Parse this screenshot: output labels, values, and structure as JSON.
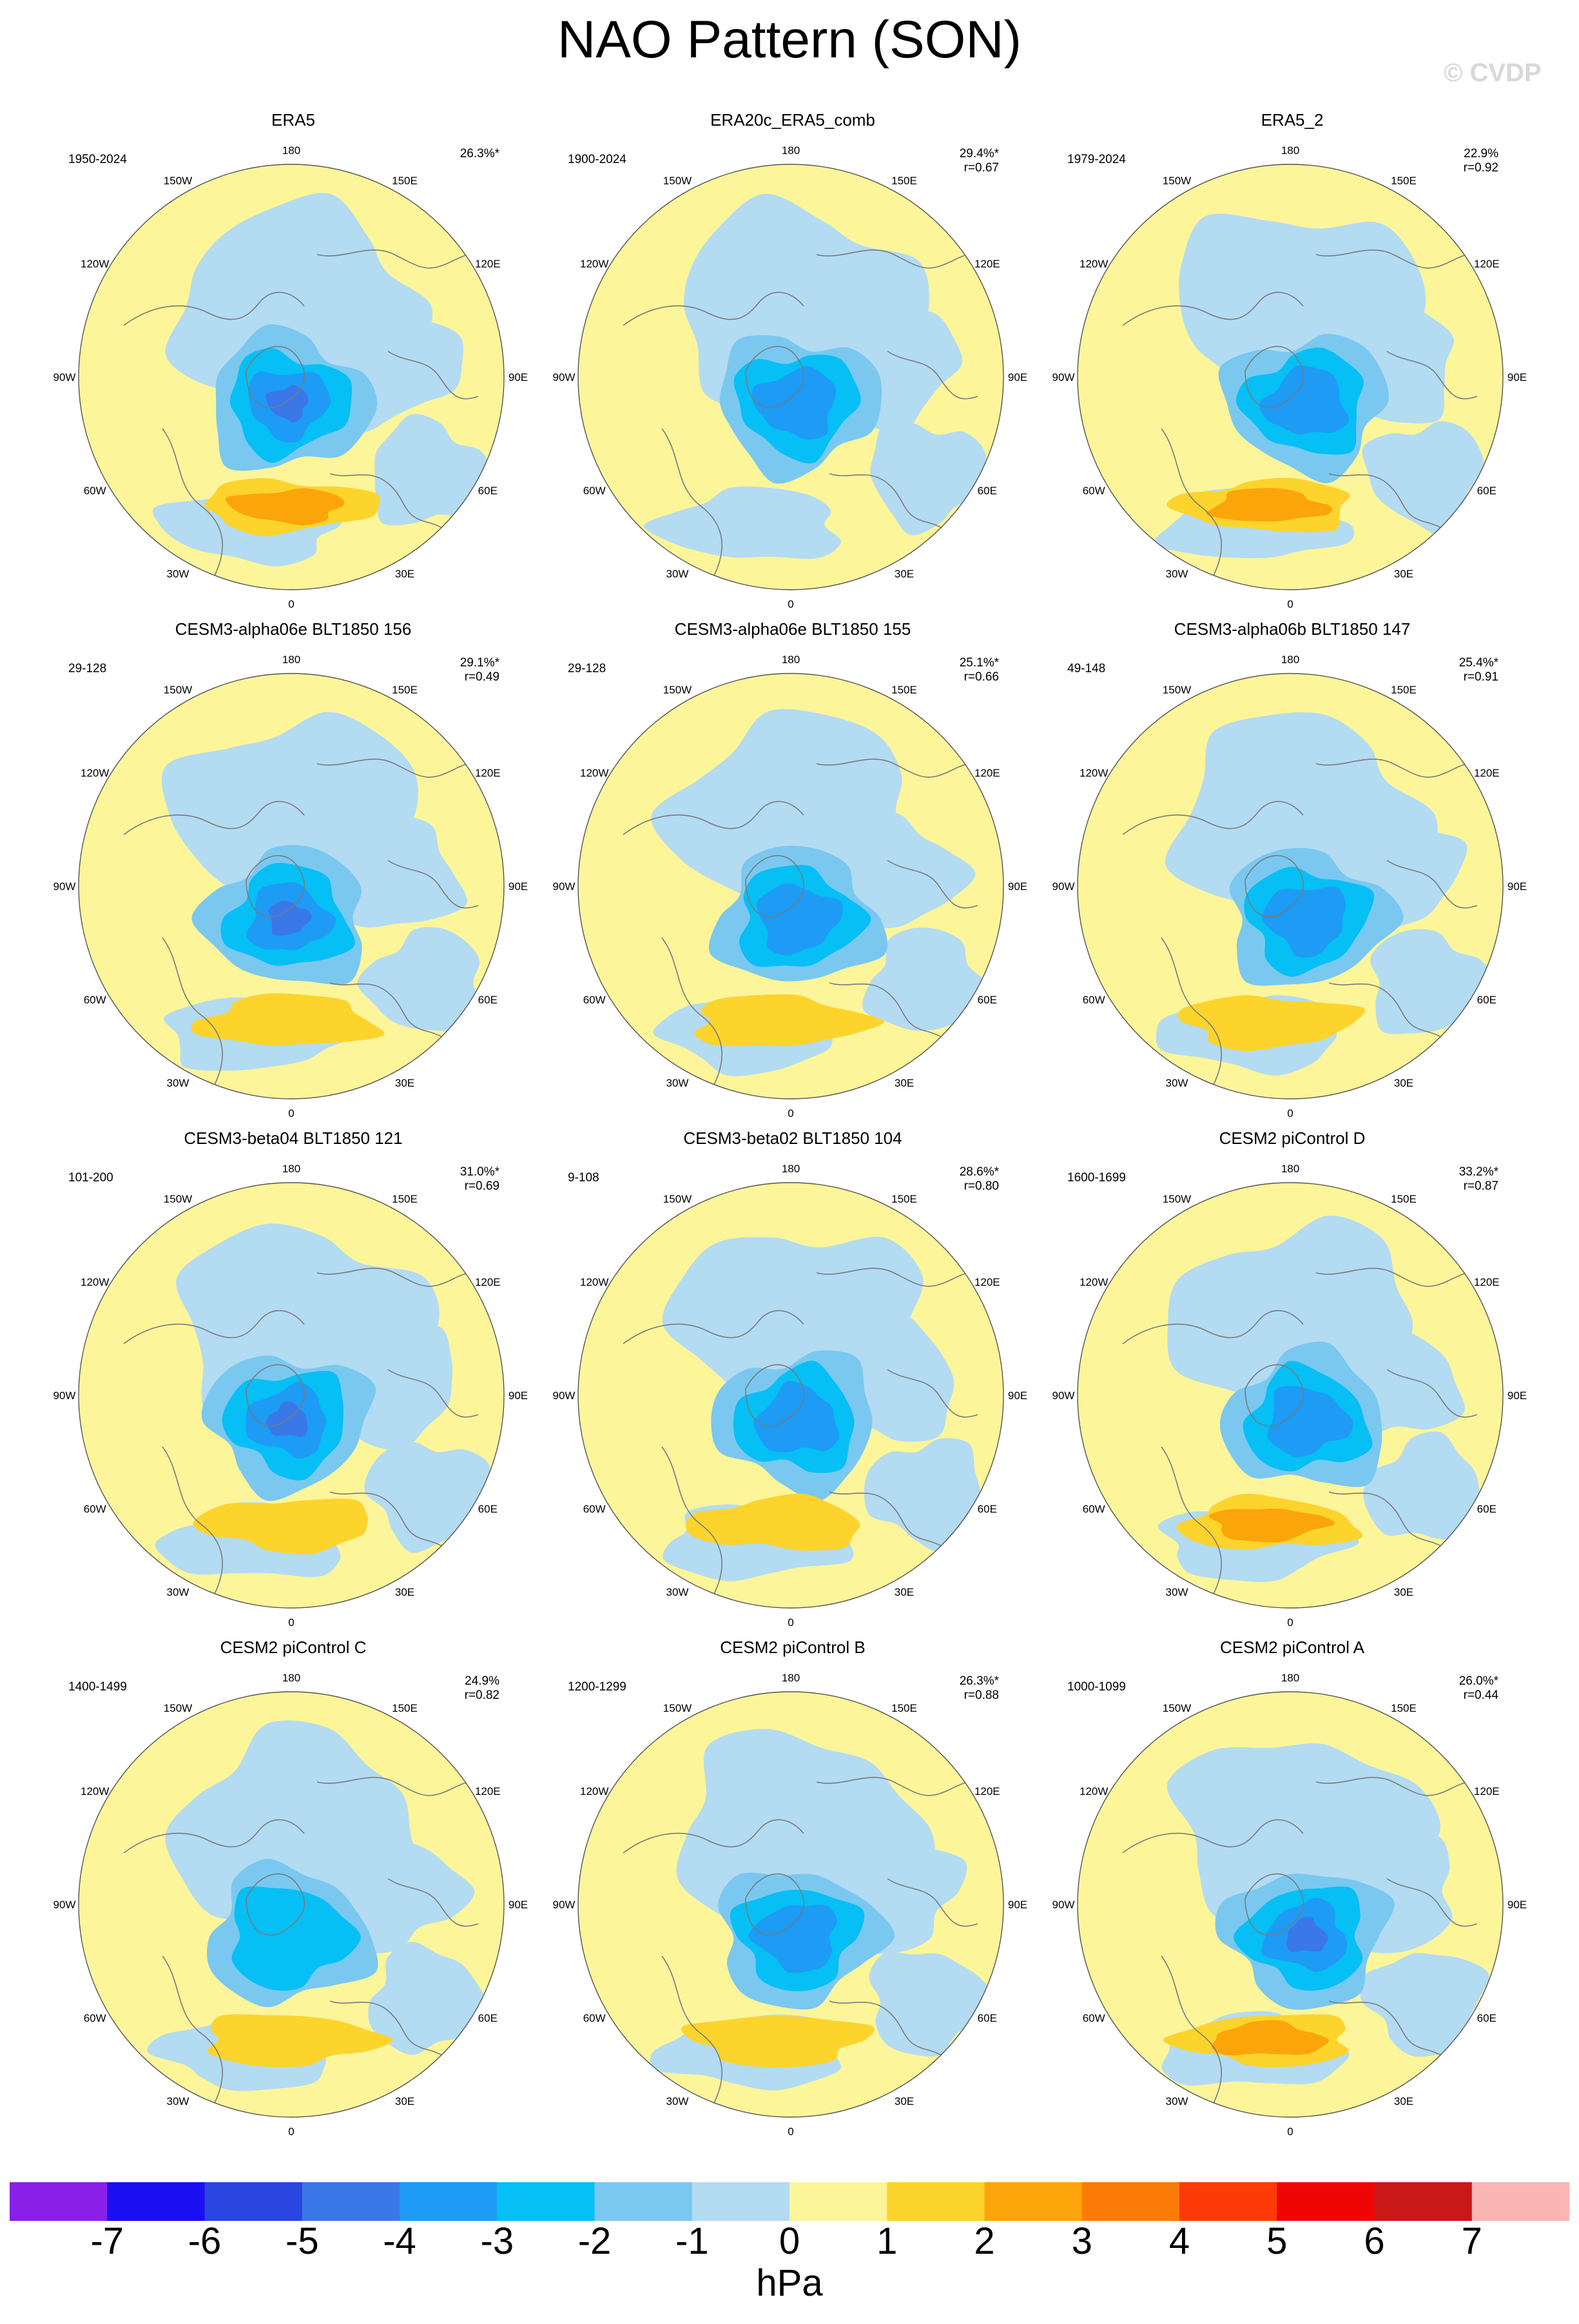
{
  "title": "NAO Pattern (SON)",
  "watermark": "© CVDP",
  "colors": {
    "yellow": "#fcf59a",
    "light_blue": "#b3dbf2",
    "coast": "#7a7a7a",
    "map_border": "#555555"
  },
  "longitude_labels": [
    "180",
    "150E",
    "120E",
    "90E",
    "60E",
    "30E",
    "0",
    "30W",
    "60W",
    "90W",
    "120W",
    "150W"
  ],
  "panels": [
    {
      "title": "ERA5",
      "period": "1950-2024",
      "pct": "26.3%*",
      "corr": "",
      "blue_min": -5,
      "yellow_max": 3
    },
    {
      "title": "ERA20c_ERA5_comb",
      "period": "1900-2024",
      "pct": "29.4%*",
      "corr": "r=0.67",
      "blue_min": -4,
      "yellow_max": 1
    },
    {
      "title": "ERA5_2",
      "period": "1979-2024",
      "pct": "22.9%",
      "corr": "r=0.92",
      "blue_min": -4,
      "yellow_max": 3
    },
    {
      "title": "CESM3-alpha06e BLT1850 156",
      "period": "29-128",
      "pct": "29.1%*",
      "corr": "r=0.49",
      "blue_min": -5,
      "yellow_max": 2
    },
    {
      "title": "CESM3-alpha06e BLT1850 155",
      "period": "29-128",
      "pct": "25.1%*",
      "corr": "r=0.66",
      "blue_min": -4,
      "yellow_max": 2
    },
    {
      "title": "CESM3-alpha06b BLT1850 147",
      "period": "49-148",
      "pct": "25.4%*",
      "corr": "r=0.91",
      "blue_min": -4,
      "yellow_max": 2
    },
    {
      "title": "CESM3-beta04 BLT1850 121",
      "period": "101-200",
      "pct": "31.0%*",
      "corr": "r=0.69",
      "blue_min": -5,
      "yellow_max": 2
    },
    {
      "title": "CESM3-beta02 BLT1850 104",
      "period": "9-108",
      "pct": "28.6%*",
      "corr": "r=0.80",
      "blue_min": -4,
      "yellow_max": 2
    },
    {
      "title": "CESM2 piControl D",
      "period": "1600-1699",
      "pct": "33.2%*",
      "corr": "r=0.87",
      "blue_min": -4,
      "yellow_max": 3
    },
    {
      "title": "CESM2 piControl C",
      "period": "1400-1499",
      "pct": "24.9%",
      "corr": "r=0.82",
      "blue_min": -3,
      "yellow_max": 2
    },
    {
      "title": "CESM2 piControl B",
      "period": "1200-1299",
      "pct": "26.3%*",
      "corr": "r=0.88",
      "blue_min": -4,
      "yellow_max": 2
    },
    {
      "title": "CESM2 piControl A",
      "period": "1000-1099",
      "pct": "26.0%*",
      "corr": "r=0.44",
      "blue_min": -5,
      "yellow_max": 3
    }
  ],
  "colorbar": {
    "levels": [
      "-7",
      "-6",
      "-5",
      "-4",
      "-3",
      "-2",
      "-1",
      "0",
      "1",
      "2",
      "3",
      "4",
      "5",
      "6",
      "7"
    ],
    "colors": [
      "#8a1fe8",
      "#1a0ff0",
      "#2b45e0",
      "#3a78e8",
      "#1e9bf5",
      "#05bff5",
      "#7ac8f0",
      "#b3dbf2",
      "#fcf59a",
      "#fcd42c",
      "#fca50a",
      "#fc7a08",
      "#fc3a07",
      "#f00505",
      "#c81818",
      "#fab4b4"
    ],
    "units": "hPa"
  }
}
